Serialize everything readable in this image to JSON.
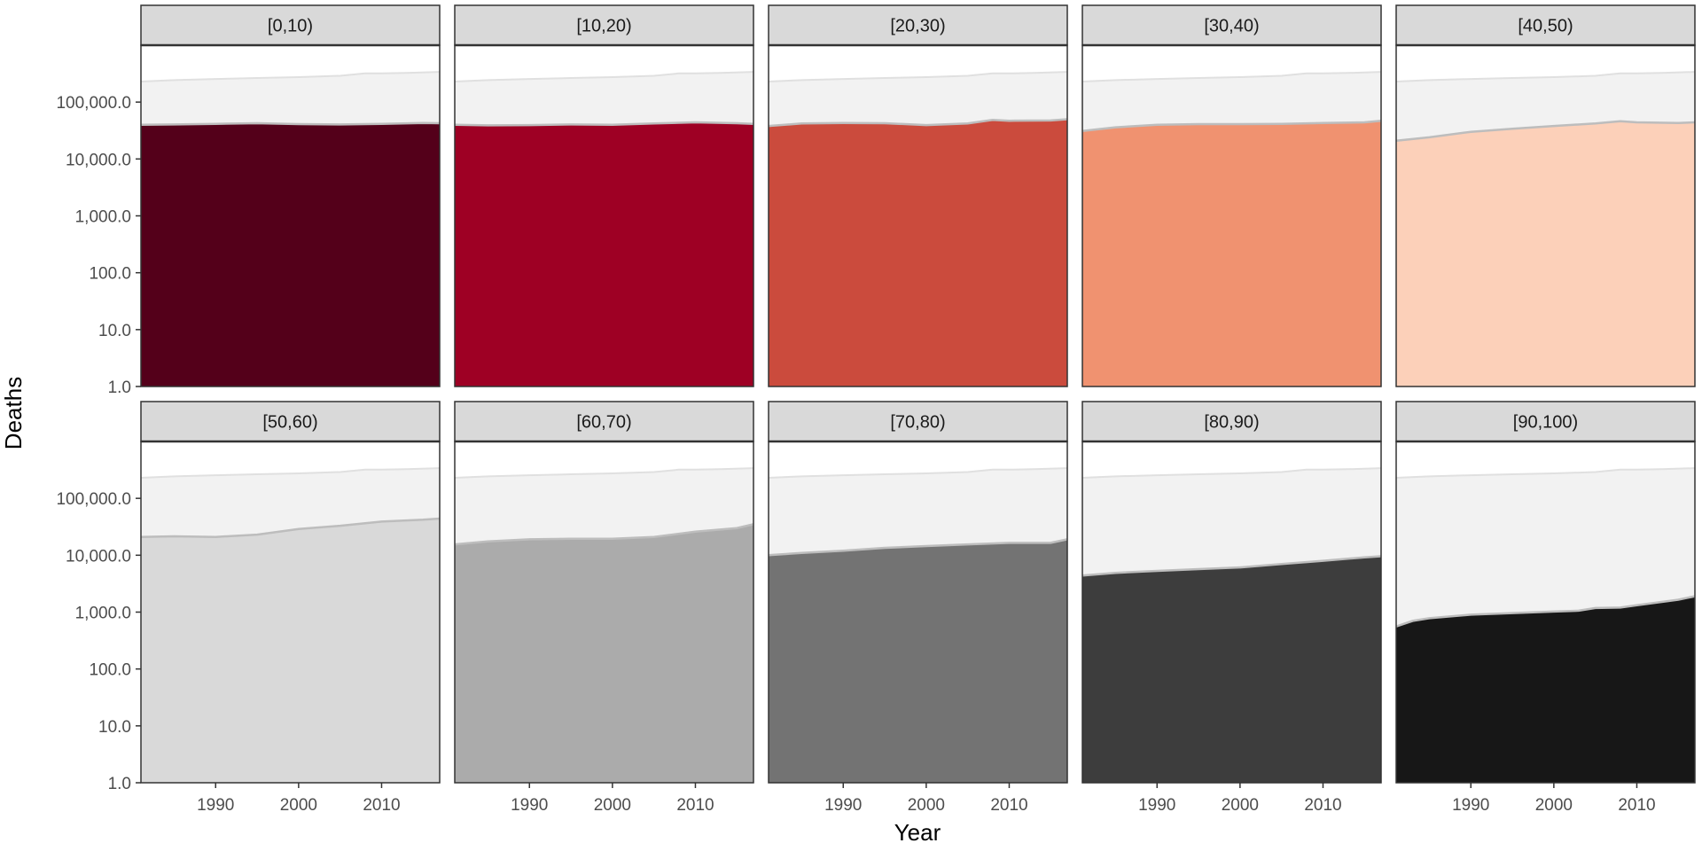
{
  "chart_data": {
    "type": "area",
    "layout": "facet-grid",
    "rows": 2,
    "cols": 5,
    "xlabel": "Year",
    "ylabel": "Deaths",
    "y_scale": "log10",
    "ylim": [
      1,
      1000000
    ],
    "xlim": [
      1981,
      2017
    ],
    "y_ticks": [
      1,
      10,
      100,
      1000,
      10000,
      100000
    ],
    "y_tick_labels": [
      "1.0",
      "10.0",
      "100.0",
      "1,000.0",
      "10,000.0",
      "100,000.0"
    ],
    "x_ticks": [
      1990,
      2000,
      2010
    ],
    "x_tick_labels": [
      "1990",
      "2000",
      "2010"
    ],
    "grid": false,
    "legend": "none",
    "background_series": {
      "x": [
        1981,
        1985,
        1990,
        1995,
        2000,
        2005,
        2008,
        2010,
        2013,
        2017
      ],
      "values": [
        230000,
        243000,
        255000,
        265000,
        275000,
        290000,
        320000,
        320000,
        325000,
        340000
      ],
      "color": "#f2f2f2"
    },
    "panels": [
      {
        "label": "[0,10)",
        "color": "#54001a",
        "x": [
          1981,
          1985,
          1990,
          1995,
          2000,
          2005,
          2010,
          2015,
          2017
        ],
        "values": [
          40000,
          40500,
          41500,
          42500,
          41000,
          40500,
          41500,
          43000,
          42500
        ]
      },
      {
        "label": "[10,20)",
        "color": "#9e0024",
        "x": [
          1981,
          1985,
          1990,
          1995,
          2000,
          2005,
          2010,
          2015,
          2017
        ],
        "values": [
          40000,
          39000,
          39500,
          40500,
          40000,
          42000,
          44000,
          42500,
          41500
        ]
      },
      {
        "label": "[20,30)",
        "color": "#cb4b3d",
        "x": [
          1981,
          1985,
          1990,
          1995,
          2000,
          2005,
          2008,
          2010,
          2015,
          2017
        ],
        "values": [
          38000,
          42000,
          43000,
          42500,
          39500,
          42000,
          48500,
          47000,
          47500,
          50000
        ]
      },
      {
        "label": "[30,40)",
        "color": "#f09270",
        "x": [
          1981,
          1985,
          1990,
          1995,
          2000,
          2005,
          2010,
          2015,
          2017
        ],
        "values": [
          31000,
          36000,
          40000,
          41000,
          41000,
          41500,
          43000,
          44000,
          47000
        ]
      },
      {
        "label": "[40,50)",
        "color": "#fcd0b9",
        "x": [
          1981,
          1985,
          1990,
          1995,
          2000,
          2005,
          2008,
          2010,
          2015,
          2017
        ],
        "values": [
          21000,
          24000,
          30000,
          34000,
          38000,
          42000,
          46000,
          44000,
          43000,
          44000
        ]
      },
      {
        "label": "[50,60)",
        "color": "#d9d9d9",
        "x": [
          1981,
          1985,
          1990,
          1995,
          2000,
          2005,
          2010,
          2015,
          2017
        ],
        "values": [
          21000,
          21500,
          21000,
          23000,
          29000,
          33000,
          39000,
          42000,
          44000
        ]
      },
      {
        "label": "[60,70)",
        "color": "#ababab",
        "x": [
          1981,
          1985,
          1990,
          1995,
          2000,
          2005,
          2010,
          2015,
          2017
        ],
        "values": [
          15500,
          17500,
          19000,
          19500,
          19500,
          21000,
          26000,
          30000,
          35000
        ]
      },
      {
        "label": "[70,80)",
        "color": "#737373",
        "x": [
          1981,
          1985,
          1990,
          1995,
          2000,
          2005,
          2010,
          2015,
          2017
        ],
        "values": [
          10000,
          11000,
          12000,
          13500,
          14500,
          15500,
          16500,
          16500,
          19000
        ]
      },
      {
        "label": "[80,90)",
        "color": "#3d3d3d",
        "x": [
          1981,
          1985,
          1990,
          1995,
          2000,
          2005,
          2010,
          2015,
          2017
        ],
        "values": [
          4400,
          4900,
          5300,
          5700,
          6100,
          7000,
          8000,
          9200,
          9600
        ]
      },
      {
        "label": "[90,100)",
        "color": "#171717",
        "x": [
          1981,
          1983,
          1985,
          1990,
          1995,
          2000,
          2003,
          2005,
          2008,
          2010,
          2015,
          2017
        ],
        "values": [
          560,
          700,
          780,
          900,
          960,
          1020,
          1060,
          1180,
          1200,
          1320,
          1650,
          1900
        ]
      }
    ]
  }
}
